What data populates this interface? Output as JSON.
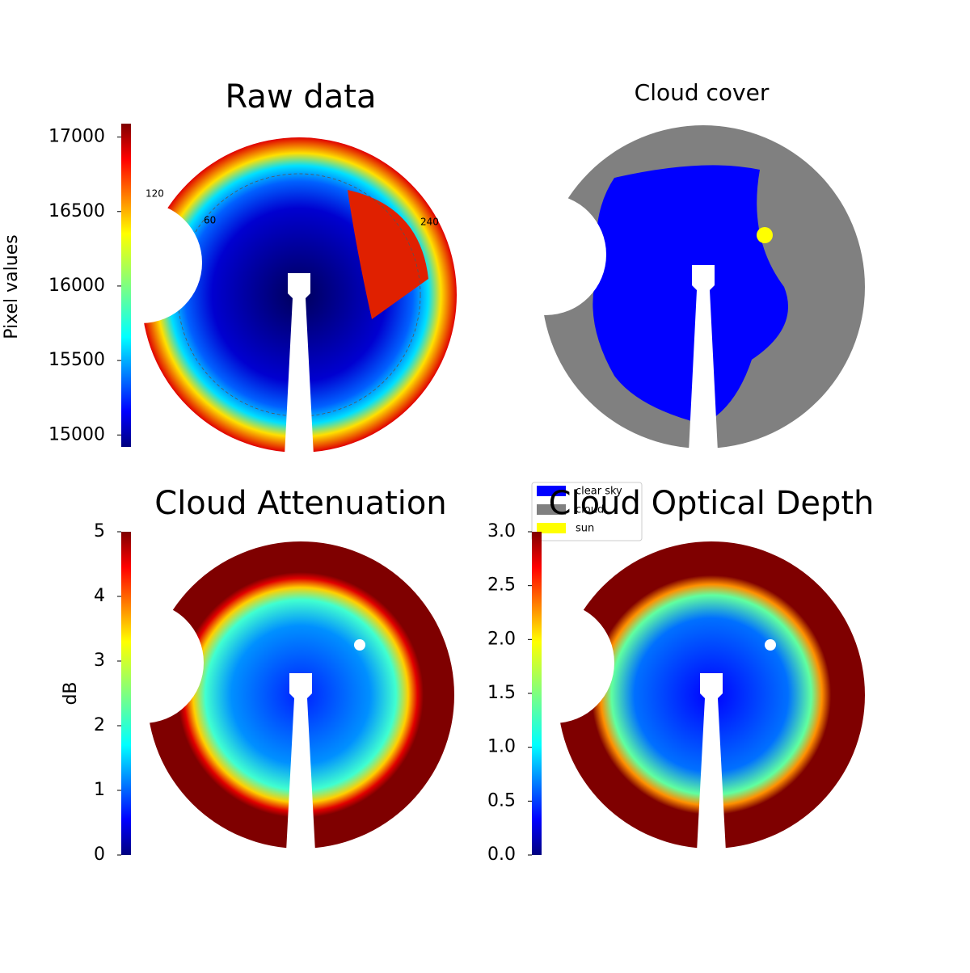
{
  "chart_data": [
    {
      "type": "image",
      "title": "Raw data",
      "colorbar_label": "Pixel values",
      "clim": [
        14920,
        17090
      ],
      "cticks": [
        15000,
        15500,
        16000,
        16500,
        17000
      ],
      "annotations": [
        "120",
        "60",
        "240"
      ]
    },
    {
      "type": "categorical-image",
      "title": "Cloud cover",
      "series": [
        {
          "name": "clear sky",
          "color": "#0000ff"
        },
        {
          "name": "cloud",
          "color": "#808080"
        },
        {
          "name": "sun",
          "color": "#ffff00"
        }
      ]
    },
    {
      "type": "image",
      "title": "Cloud Attenuation",
      "colorbar_label": "dB",
      "clim": [
        0,
        5
      ],
      "cticks": [
        0,
        1,
        2,
        3,
        4,
        5
      ]
    },
    {
      "type": "image",
      "title": "Cloud Optical Depth",
      "clim": [
        0,
        3
      ],
      "cticks": [
        {
          "value": 0,
          "label": "0.0"
        },
        {
          "value": 0.5,
          "label": "0.5"
        },
        {
          "value": 1,
          "label": "1.0"
        },
        {
          "value": 1.5,
          "label": "1.5"
        },
        {
          "value": 2,
          "label": "2.0"
        },
        {
          "value": 2.5,
          "label": "2.5"
        },
        {
          "value": 3,
          "label": "3.0"
        }
      ]
    }
  ]
}
